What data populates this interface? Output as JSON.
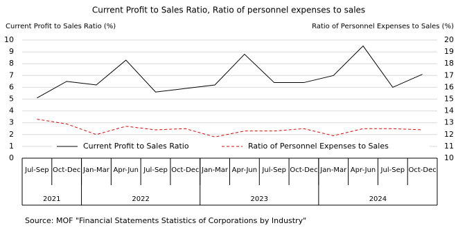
{
  "chart_data": {
    "type": "line",
    "title": "Current Profit to Sales Ratio, Ratio of personnel expenses to sales",
    "y_label": "Current Profit to Sales Ratio (%)",
    "y2_label": "Ratio of Personnel Expenses to Sales  (%)",
    "categories": [
      "Jul-Sep",
      "Oct-Dec",
      "Jan-Mar",
      "Apr-Jun",
      "Jul-Sep",
      "Oct-Dec",
      "Jan-Mar",
      "Apr-Jun",
      "Jul-Sep",
      "Oct-Dec",
      "Jan-Mar",
      "Apr-Jun",
      "Jul-Sep",
      "Oct-Dec"
    ],
    "x_groups": [
      {
        "label": "2021",
        "count": 2
      },
      {
        "label": "2022",
        "count": 4
      },
      {
        "label": "2023",
        "count": 4
      },
      {
        "label": "2024",
        "count": 4
      }
    ],
    "series": [
      {
        "name": "Current Profit to Sales Ratio",
        "color": "#000000",
        "dash": false,
        "axis": "y",
        "values": [
          5.1,
          6.5,
          6.2,
          8.3,
          5.6,
          5.9,
          6.2,
          8.8,
          6.4,
          6.4,
          7.0,
          9.5,
          6.0,
          7.1
        ]
      },
      {
        "name": "Ratio of Personnel Expenses to Sales",
        "color": "#e00000",
        "dash": true,
        "axis": "y2",
        "values": [
          13.3,
          12.9,
          12.0,
          12.7,
          12.4,
          12.5,
          11.8,
          12.3,
          12.3,
          12.5,
          11.9,
          12.5,
          12.5,
          12.4
        ]
      }
    ],
    "ylim": [
      0,
      10
    ],
    "yticks": [
      0,
      1,
      2,
      3,
      4,
      5,
      6,
      7,
      8,
      9,
      10
    ],
    "y2lim": [
      10,
      20
    ],
    "y2ticks": [
      10,
      11,
      12,
      13,
      14,
      15,
      16,
      17,
      18,
      19,
      20
    ],
    "grid": true,
    "legend": "bottom",
    "source": "Source: MOF \"Financial Statements Statistics of Corporations by Industry\""
  }
}
